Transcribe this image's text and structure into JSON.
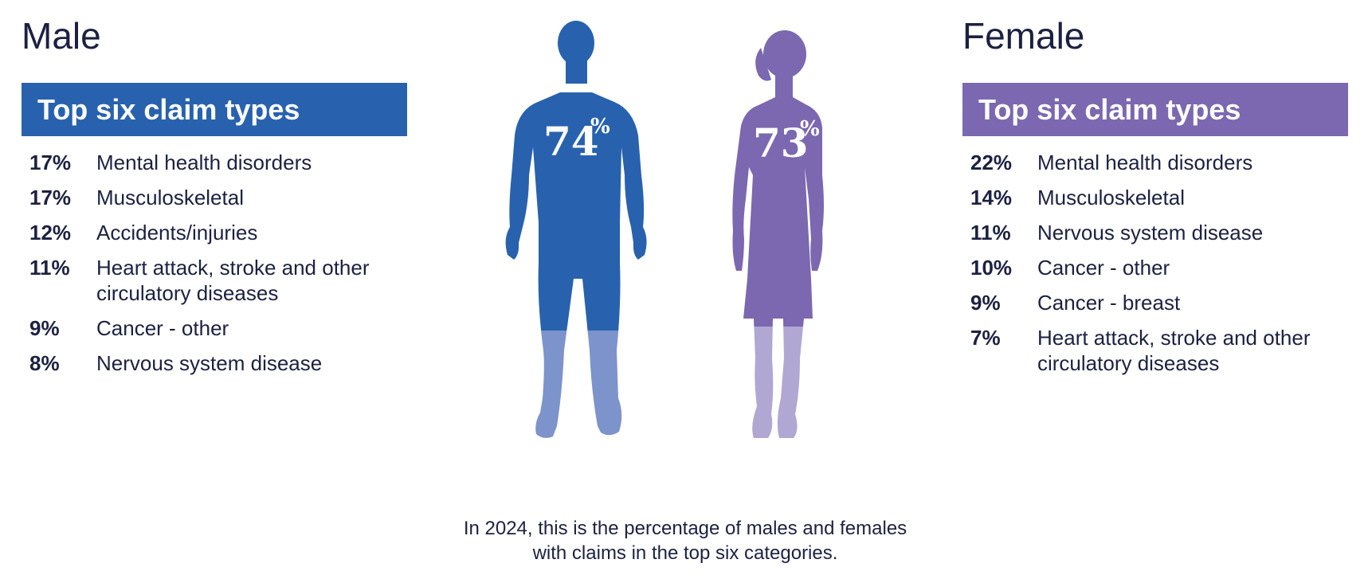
{
  "male": {
    "heading": "Male",
    "banner": "Top six claim types",
    "items": [
      {
        "pct": "17%",
        "label": "Mental health disorders"
      },
      {
        "pct": "17%",
        "label": "Musculoskeletal"
      },
      {
        "pct": "12%",
        "label": "Accidents/injuries"
      },
      {
        "pct": "11%",
        "label": "Heart attack, stroke and other circulatory diseases"
      },
      {
        "pct": "9%",
        "label": "Cancer - other"
      },
      {
        "pct": "8%",
        "label": "Nervous system disease"
      }
    ],
    "figure_value": "74",
    "figure_unit": "%"
  },
  "female": {
    "heading": "Female",
    "banner": "Top six claim types",
    "items": [
      {
        "pct": "22%",
        "label": "Mental health disorders"
      },
      {
        "pct": "14%",
        "label": "Musculoskeletal"
      },
      {
        "pct": "11%",
        "label": "Nervous system disease"
      },
      {
        "pct": "10%",
        "label": "Cancer - other"
      },
      {
        "pct": "9%",
        "label": "Cancer - breast"
      },
      {
        "pct": "7%",
        "label": "Heart attack, stroke and other circulatory diseases"
      }
    ],
    "figure_value": "73",
    "figure_unit": "%"
  },
  "caption": "In 2024, this is the percentage of males and females with claims in the top six categories.",
  "colors": {
    "male": "#2862ae",
    "male_light": "#7d93cb",
    "female": "#7b68b0",
    "female_light": "#b0a7d3",
    "text": "#1c2142"
  },
  "chart_data": {
    "type": "bar",
    "categories": [
      "Male",
      "Female"
    ],
    "values": [
      74,
      73
    ],
    "fill_fraction": [
      0.74,
      0.73
    ],
    "unit": "%"
  }
}
